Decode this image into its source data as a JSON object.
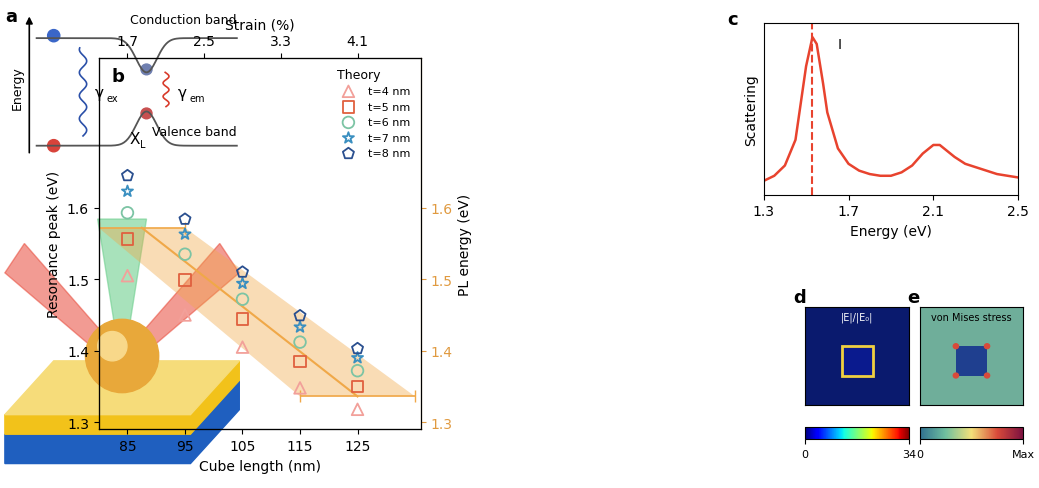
{
  "panel_labels": [
    "a",
    "b",
    "c",
    "d",
    "e"
  ],
  "diagram": {
    "axis_label": "Energy",
    "conduction_band": "Conduction band",
    "valence_band": "Valence band",
    "excitation": {
      "symbol": "γ",
      "subscript": "ex"
    },
    "emission": {
      "symbol": "γ",
      "subscript": "em"
    },
    "exciton": {
      "symbol": "X",
      "subscript": "L"
    }
  },
  "chart_data": [
    {
      "type": "scatter",
      "x_label": "Cube length (nm)",
      "y_label": "Resonance peak (eV)",
      "y2_label": "PL energy (eV)",
      "x2_label": "Strain (%)",
      "xlim": [
        80,
        136
      ],
      "xticks": [
        85,
        95,
        105,
        115,
        125
      ],
      "x2lim": [
        1.4,
        4.76
      ],
      "x2ticks": [
        1.7,
        2.5,
        3.3,
        4.1
      ],
      "ylim": [
        1.29,
        1.81
      ],
      "yticks": [
        1.3,
        1.4,
        1.5,
        1.6
      ],
      "y2lim": [
        1.29,
        1.81
      ],
      "y2ticks": [
        1.3,
        1.4,
        1.5,
        1.6
      ],
      "legend": "upper right",
      "legend_title": "Theory",
      "series": [
        {
          "name": "t=4 nm",
          "color": "#f2a09a",
          "marker": "triangle",
          "x": [
            85,
            95,
            105,
            115,
            125
          ],
          "values": [
            1.505,
            1.45,
            1.405,
            1.348,
            1.318
          ]
        },
        {
          "name": "t=5 nm",
          "color": "#e0603f",
          "marker": "square",
          "x": [
            85,
            95,
            105,
            115,
            125
          ],
          "values": [
            1.556,
            1.499,
            1.444,
            1.385,
            1.35
          ]
        },
        {
          "name": "t=6 nm",
          "color": "#7cc4a4",
          "marker": "circle",
          "x": [
            85,
            95,
            105,
            115,
            125
          ],
          "values": [
            1.593,
            1.535,
            1.472,
            1.412,
            1.372
          ]
        },
        {
          "name": "t=7 nm",
          "color": "#3a8fc0",
          "marker": "star",
          "x": [
            85,
            95,
            105,
            115,
            125
          ],
          "values": [
            1.623,
            1.563,
            1.494,
            1.433,
            1.39
          ]
        },
        {
          "name": "t=8 nm",
          "color": "#2a4f8f",
          "marker": "pentagon",
          "x": [
            85,
            95,
            105,
            115,
            125
          ],
          "values": [
            1.645,
            1.584,
            1.51,
            1.449,
            1.403
          ]
        },
        {
          "type": "band",
          "axis": "y2",
          "color": "#f0a848",
          "x": [
            87.5,
            125
          ],
          "values": [
            1.572,
            1.336
          ],
          "xerr": [
            7.5,
            10
          ]
        }
      ]
    },
    {
      "type": "line",
      "x_label": "Energy (eV)",
      "y_label": "Scattering",
      "color": "#e8432e",
      "tick_labels": "x",
      "x": [
        1.3,
        1.35,
        1.4,
        1.45,
        1.5,
        1.53,
        1.55,
        1.58,
        1.6,
        1.65,
        1.7,
        1.75,
        1.8,
        1.85,
        1.9,
        1.95,
        2.0,
        2.05,
        2.1,
        2.13,
        2.2,
        2.25,
        2.3,
        2.35,
        2.4,
        2.45,
        2.5
      ],
      "values": [
        0.08,
        0.11,
        0.17,
        0.32,
        0.75,
        0.92,
        0.88,
        0.65,
        0.48,
        0.27,
        0.18,
        0.14,
        0.12,
        0.11,
        0.11,
        0.13,
        0.17,
        0.24,
        0.29,
        0.29,
        0.22,
        0.18,
        0.16,
        0.14,
        0.12,
        0.11,
        0.1
      ],
      "xlim": [
        1.3,
        2.5
      ],
      "xticks": [
        1.3,
        1.7,
        2.1,
        2.5
      ],
      "ylim": [
        0,
        1
      ],
      "vline": {
        "x": 1.53,
        "line_style": "dashed"
      },
      "annotations": [
        {
          "text": "I",
          "x": 1.66,
          "y": 0.88
        }
      ]
    },
    {
      "type": "field_map",
      "title": "|E|/|E₀|",
      "colorbar": {
        "range": [
          0,
          34
        ],
        "ticks": [
          0,
          34
        ]
      }
    },
    {
      "type": "field_map",
      "title": "von Mises stress",
      "colorbar": {
        "range": [
          0,
          1
        ],
        "ticks": [
          0,
          {
            "value": 1,
            "label": "Max"
          }
        ]
      }
    }
  ]
}
